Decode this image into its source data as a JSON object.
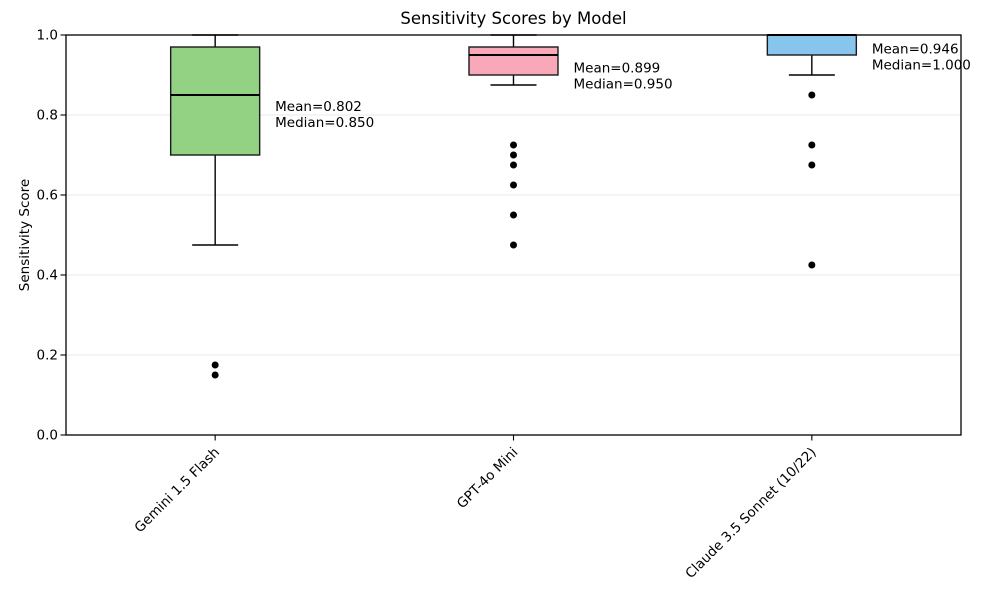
{
  "chart_data": {
    "type": "box",
    "title": "Sensitivity Scores by Model",
    "ylabel": "Sensitivity Score",
    "ylim": [
      0.0,
      1.0
    ],
    "grid": "horizontal",
    "legend": "none",
    "yticks": [
      {
        "value": 0.0,
        "label": "0.0"
      },
      {
        "value": 0.2,
        "label": "0.2"
      },
      {
        "value": 0.4,
        "label": "0.4"
      },
      {
        "value": 0.6,
        "label": "0.6"
      },
      {
        "value": 0.8,
        "label": "0.8"
      },
      {
        "value": 1.0,
        "label": "1.0"
      }
    ],
    "categories": [
      "Gemini 1.5 Flash",
      "GPT-4o Mini",
      "Claude 3.5 Sonnet (10/22)"
    ],
    "series": [
      {
        "name": "Gemini 1.5 Flash",
        "color": "#92d282",
        "whisker_low": 0.475,
        "q1": 0.7,
        "median": 0.85,
        "q3": 0.97,
        "whisker_high": 1.0,
        "mean": 0.802,
        "outliers": [
          0.175,
          0.15
        ],
        "annotation": {
          "line1": "Mean=0.802",
          "line2": "Median=0.850"
        }
      },
      {
        "name": "GPT-4o Mini",
        "color": "#f8a8b8",
        "whisker_low": 0.875,
        "q1": 0.9,
        "median": 0.95,
        "q3": 0.97,
        "whisker_high": 1.0,
        "mean": 0.899,
        "outliers": [
          0.725,
          0.7,
          0.675,
          0.625,
          0.55,
          0.475
        ],
        "annotation": {
          "line1": "Mean=0.899",
          "line2": "Median=0.950"
        }
      },
      {
        "name": "Claude 3.5 Sonnet (10/22)",
        "color": "#87c5ec",
        "whisker_low": 0.9,
        "q1": 0.95,
        "median": 1.0,
        "q3": 1.0,
        "whisker_high": 1.0,
        "mean": 0.946,
        "outliers": [
          0.85,
          0.725,
          0.675,
          0.425
        ],
        "annotation": {
          "line1": "Mean=0.946",
          "line2": "Median=1.000"
        }
      }
    ],
    "colors": {
      "grid_line": "#e8e8e8",
      "box_edge": "#1a1a1a",
      "whisker": "#000000",
      "median_line": "#000000",
      "outlier": "#000000",
      "spine": "#000000",
      "text": "#000000",
      "background": "#ffffff"
    }
  }
}
